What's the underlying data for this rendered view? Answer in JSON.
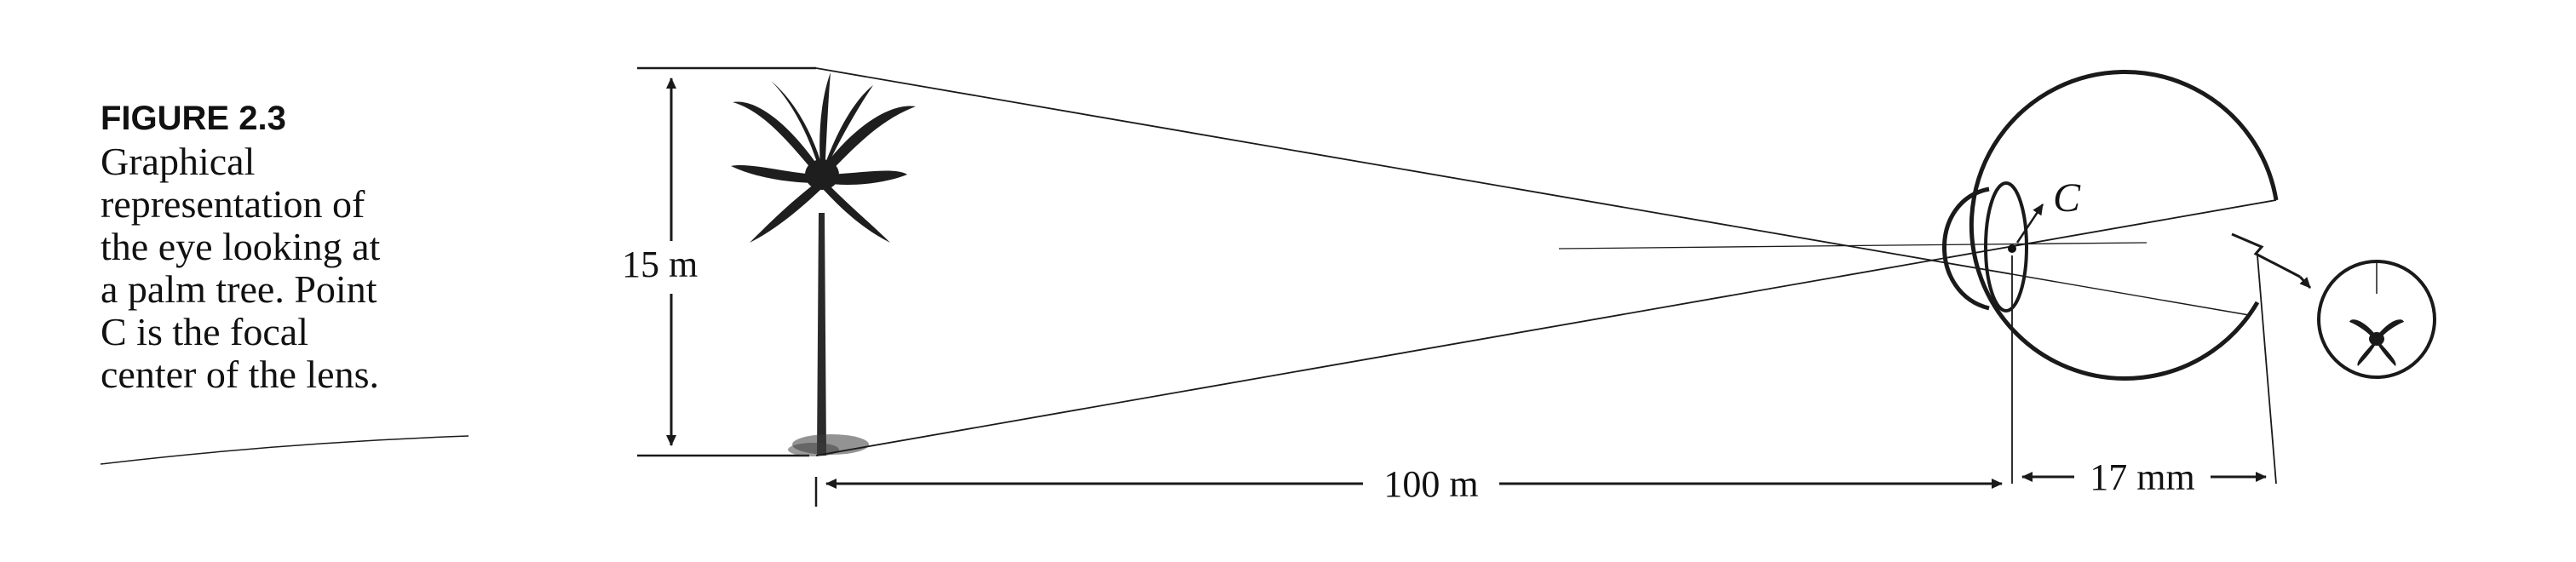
{
  "figure": {
    "label": "FIGURE 2.3",
    "caption_lines": [
      "Graphical",
      "representation of",
      "the eye looking at",
      "a palm tree. Point",
      "C is the focal",
      "center of the lens."
    ]
  },
  "dimensions": {
    "tree_height": "15 m",
    "object_distance": "100 m",
    "image_distance": "17 mm"
  },
  "points": {
    "focal_center": "C"
  }
}
